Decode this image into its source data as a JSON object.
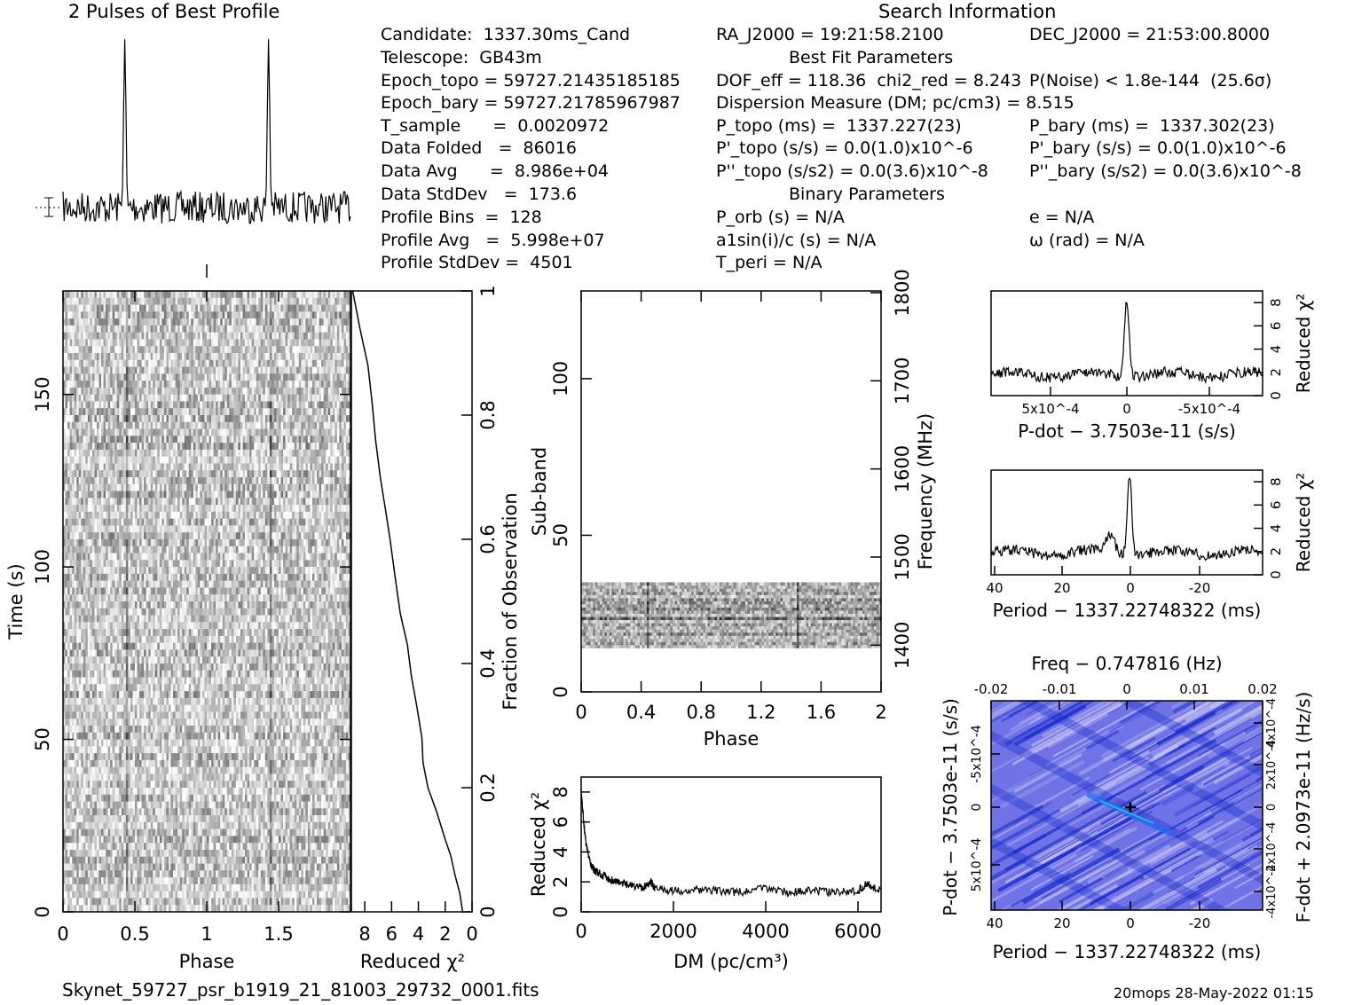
{
  "header": {
    "profile_title": "2 Pulses of Best Profile",
    "search_title": "Search Information",
    "best_fit_title": "Best Fit Parameters",
    "binary_title": "Binary Parameters"
  },
  "info_left": [
    "Candidate:  1337.30ms_Cand",
    "Telescope:  GB43m",
    "Epoch_topo = 59727.21435185185",
    "Epoch_bary = 59727.21785967987",
    "T_sample      =  0.0020972",
    "Data Folded   =  86016",
    "Data Avg      =  8.986e+04",
    "Data StdDev   =  173.6",
    "Profile Bins  =  128",
    "Profile Avg   =  5.998e+07",
    "Profile StdDev =  4501"
  ],
  "info_mid": [
    "RA_J2000 = 19:21:58.2100",
    "DOF_eff = 118.36  chi2_red = 8.243",
    "Dispersion Measure (DM; pc/cm3) = 8.515",
    "P_topo (ms) =  1337.227(23)",
    "P'_topo (s/s) = 0.0(1.0)x10^-6",
    "P''_topo (s/s2) = 0.0(3.6)x10^-8",
    "P_orb (s) = N/A",
    "a1sin(i)/c (s) = N/A",
    "T_peri = N/A"
  ],
  "info_right": [
    "DEC_J2000 = 21:53:00.8000",
    "P(Noise) < 1.8e-144  (25.6σ)",
    "P_bary (ms) =  1337.302(23)",
    "P'_bary (s/s) = 0.0(1.0)x10^-6",
    "P''_bary (s/s2) = 0.0(3.6)x10^-8",
    "e = N/A",
    "ω (rad) = N/A"
  ],
  "footer": {
    "filename": "Skynet_59727_psr_b1919_21_81003_29732_0001.fits",
    "stamp": "20mops 28-May-2022 01:15"
  },
  "colors": {
    "ink": "#000000",
    "ppdot_base": "#6f73e6",
    "ppdot_dark": "#1428c8",
    "ppdot_light": "#c9c6f2"
  },
  "chart_data": [
    {
      "type": "line",
      "id": "profile",
      "title": "2 Pulses of Best Profile",
      "x": [
        0,
        2
      ],
      "peaks_phase": [
        0.43,
        1.43
      ],
      "peak_to_noise": 8.2
    },
    {
      "type": "heatmap",
      "id": "time-phase",
      "xlabel": "Phase",
      "ylabel": "Time (s)",
      "x_ticks": [
        0,
        0.5,
        1,
        1.5
      ],
      "y_ticks": [
        0,
        50,
        100,
        150
      ],
      "xlim": [
        0,
        2
      ],
      "ylim": [
        0,
        180
      ]
    },
    {
      "type": "line",
      "id": "time-chi2",
      "xlabel": "Reduced χ²",
      "ylabel": "Fraction of Observation",
      "x_ticks": [
        8,
        6,
        4,
        2,
        0
      ],
      "y_ticks": [
        0,
        0.2,
        0.4,
        0.6,
        0.8,
        1
      ],
      "x": [
        0.7,
        0.9,
        1.2,
        1.5,
        2.0,
        2.6,
        3.2,
        3.6,
        3.8,
        4.2,
        4.5,
        4.9,
        5.3,
        5.7,
        6.2,
        6.5,
        6.9,
        7.2,
        7.5,
        7.8,
        8.3,
        8.9
      ],
      "y": [
        0,
        0.03,
        0.06,
        0.09,
        0.12,
        0.16,
        0.2,
        0.24,
        0.28,
        0.33,
        0.38,
        0.43,
        0.48,
        0.53,
        0.6,
        0.65,
        0.7,
        0.76,
        0.82,
        0.88,
        0.94,
        1.0
      ]
    },
    {
      "type": "heatmap",
      "id": "subband-phase",
      "xlabel": "Phase",
      "ylabel": "Sub-band",
      "y2label": "Frequency (MHz)",
      "x_ticks": [
        0,
        0.4,
        0.8,
        1.2,
        1.6,
        2
      ],
      "y_ticks": [
        0,
        50,
        100
      ],
      "y2_ticks": [
        1400,
        1500,
        1600,
        1700,
        1800
      ],
      "xlim": [
        0,
        2
      ],
      "ylim": [
        0,
        128
      ],
      "filled_subbands": [
        14,
        35
      ]
    },
    {
      "type": "line",
      "id": "dm-chi2",
      "xlabel": "DM (pc/cm³)",
      "ylabel": "Reduced χ²",
      "x_ticks": [
        0,
        2000,
        4000,
        6000
      ],
      "y_ticks": [
        0,
        2,
        4,
        6,
        8
      ],
      "xlim": [
        0,
        6500
      ],
      "ylim": [
        0,
        9
      ],
      "x": [
        0,
        50,
        100,
        200,
        300,
        400,
        600,
        800,
        1000,
        1300,
        1500,
        1600,
        2000,
        2500,
        3000,
        3500,
        4000,
        4500,
        5000,
        5500,
        6000,
        6200,
        6500
      ],
      "y": [
        8.0,
        6.2,
        4.6,
        3.2,
        2.7,
        2.6,
        2.2,
        2.0,
        1.8,
        1.6,
        2.0,
        1.6,
        1.4,
        1.5,
        1.4,
        1.3,
        1.6,
        1.3,
        1.4,
        1.3,
        1.4,
        1.9,
        1.3
      ]
    },
    {
      "type": "line",
      "id": "pdot-chi2",
      "xlabel": "P-dot − 3.7503e-11 (s/s)",
      "ylabel": "Reduced χ²",
      "x_ticks": [
        "5x10^-4",
        "0",
        "-5x10^-4"
      ],
      "y_ticks": [
        0,
        2,
        4,
        6,
        8
      ],
      "ylim": [
        0,
        9
      ],
      "peak": 8.6,
      "baseline": 1.8
    },
    {
      "type": "line",
      "id": "period-chi2",
      "xlabel": "Period − 1337.22748322 (ms)",
      "ylabel": "Reduced χ²",
      "x_ticks": [
        40,
        20,
        0,
        -20
      ],
      "y_ticks": [
        0,
        2,
        4,
        6,
        8
      ],
      "xlim": [
        40,
        -38
      ],
      "ylim": [
        0,
        9
      ],
      "peak": 8.6,
      "baseline": 1.9
    },
    {
      "type": "heatmap",
      "id": "p-pdot",
      "title": "Freq − 0.747816 (Hz)",
      "xlabel": "Period − 1337.22748322 (ms)",
      "ylabel": "P-dot − 3.7503e-11 (s/s)",
      "y2label": "F-dot + 2.0973e-11 (Hz/s)",
      "x_ticks": [
        40,
        20,
        0,
        -20
      ],
      "x2_ticks": [
        -0.02,
        -0.01,
        0,
        0.01,
        0.02
      ],
      "y_ticks": [
        "-5x10^-4",
        "0",
        "5x10^-4"
      ],
      "y2_ticks": [
        "4x10^-4",
        "2x10^-4",
        "0",
        "-2x10^-4",
        "-4x10^-4"
      ]
    }
  ]
}
